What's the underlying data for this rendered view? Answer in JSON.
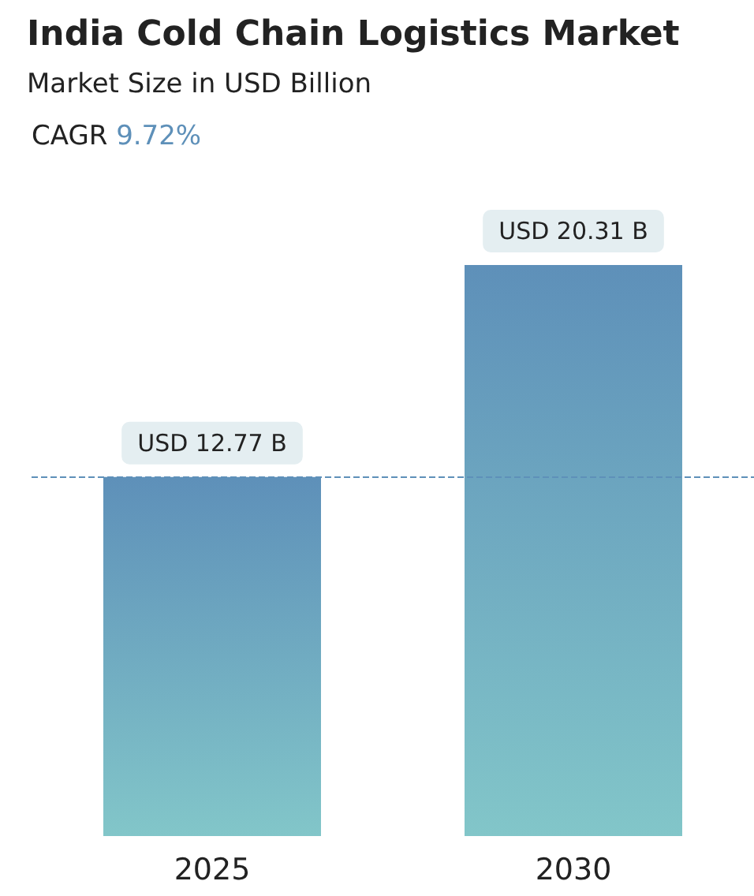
{
  "chart_data": {
    "type": "bar",
    "title": "India Cold Chain Logistics Market",
    "subtitle": "Market Size in USD Billion",
    "annotations": [
      "CAGR 9.72%"
    ],
    "categories": [
      "2025",
      "2030"
    ],
    "values": [
      12.77,
      20.31
    ],
    "color": "#5e90b9",
    "value_labels": [
      "USD 12.77 B",
      "USD 20.31 B"
    ],
    "ref_lines": [
      {
        "axis": "y",
        "value": 12.77,
        "color": "#5e90b9",
        "line_style": "dashed"
      }
    ]
  }
}
